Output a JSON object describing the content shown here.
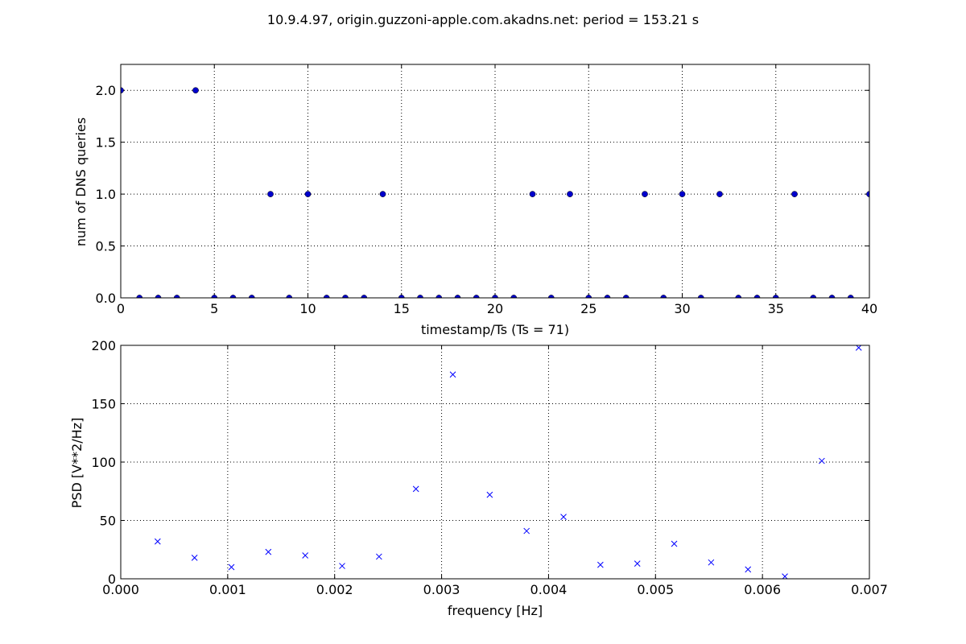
{
  "figure": {
    "suptitle": "10.9.4.97, origin.guzzoni-apple.com.akadns.net: period = 153.21 s"
  },
  "chart_data": [
    {
      "type": "scatter",
      "marker": "circle",
      "color": "#0000cc",
      "grid": true,
      "xlabel": "timestamp/Ts (Ts = 71)",
      "ylabel": "num of DNS queries",
      "xlim": [
        0,
        40
      ],
      "ylim": [
        0,
        2.25
      ],
      "xticks": [
        0,
        5,
        10,
        15,
        20,
        25,
        30,
        35,
        40
      ],
      "xtick_labels": [
        "0",
        "5",
        "10",
        "15",
        "20",
        "25",
        "30",
        "35",
        "40"
      ],
      "yticks": [
        0,
        0.5,
        1,
        1.5,
        2
      ],
      "ytick_labels": [
        "0.0",
        "0.5",
        "1.0",
        "1.5",
        "2.0"
      ],
      "x": [
        0,
        1,
        2,
        3,
        4,
        5,
        6,
        7,
        8,
        9,
        10,
        11,
        12,
        13,
        14,
        15,
        16,
        17,
        18,
        19,
        20,
        21,
        22,
        23,
        24,
        25,
        26,
        27,
        28,
        29,
        30,
        31,
        32,
        33,
        34,
        35,
        36,
        37,
        38,
        39,
        40
      ],
      "y": [
        2,
        0,
        0,
        0,
        2,
        0,
        0,
        0,
        1,
        0,
        1,
        0,
        0,
        0,
        1,
        0,
        0,
        0,
        0,
        0,
        0,
        0,
        1,
        0,
        1,
        0,
        0,
        0,
        1,
        0,
        1,
        0,
        1,
        0,
        0,
        0,
        1,
        0,
        0,
        0,
        1
      ]
    },
    {
      "type": "scatter",
      "marker": "x",
      "color": "#0000ff",
      "grid": true,
      "xlabel": "frequency [Hz]",
      "ylabel": "PSD [V**2/Hz]",
      "xlim": [
        0,
        0.007
      ],
      "ylim": [
        0,
        200
      ],
      "xticks": [
        0,
        0.001,
        0.002,
        0.003,
        0.004,
        0.005,
        0.006,
        0.007
      ],
      "xtick_labels": [
        "0.000",
        "0.001",
        "0.002",
        "0.003",
        "0.004",
        "0.005",
        "0.006",
        "0.007"
      ],
      "yticks": [
        0,
        50,
        100,
        150,
        200
      ],
      "ytick_labels": [
        "0",
        "50",
        "100",
        "150",
        "200"
      ],
      "x": [
        0.000345,
        0.00069,
        0.001035,
        0.00138,
        0.001725,
        0.00207,
        0.002415,
        0.00276,
        0.003105,
        0.00345,
        0.003795,
        0.00414,
        0.004485,
        0.00483,
        0.005175,
        0.00552,
        0.005865,
        0.00621,
        0.006555,
        0.0069
      ],
      "y": [
        32,
        18,
        10,
        23,
        20,
        11,
        19,
        77,
        175,
        72,
        41,
        53,
        12,
        13,
        30,
        14,
        8,
        2,
        101,
        198
      ]
    }
  ]
}
